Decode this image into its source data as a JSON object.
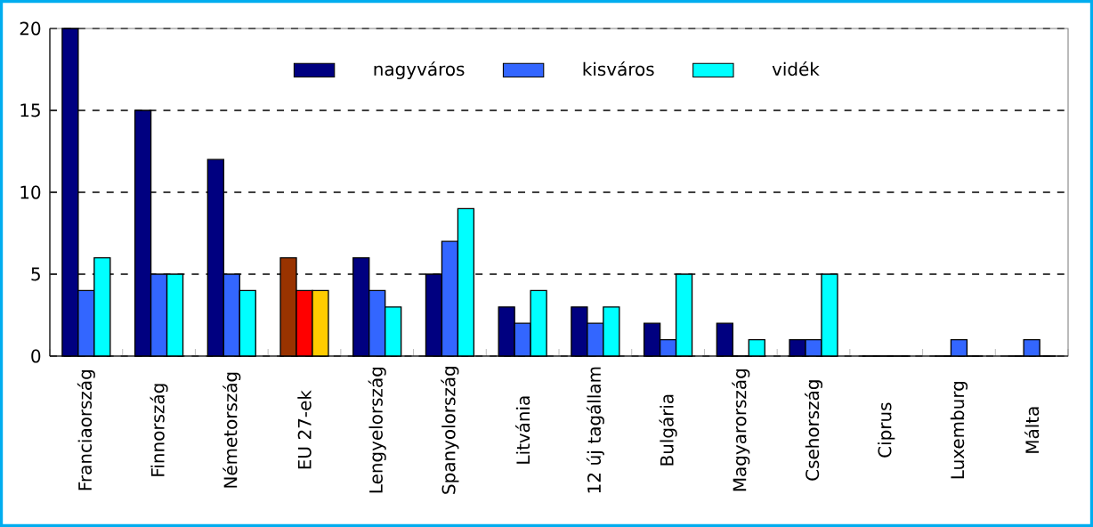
{
  "chart_data": {
    "type": "bar",
    "categories": [
      "Franciaország",
      "Finnország",
      "Németország",
      "EU 27-ek",
      "Lengyelország",
      "Spanyolország",
      "Litvánia",
      "12 új tagállam",
      "Bulgária",
      "Magyarország",
      "Csehország",
      "Ciprus",
      "Luxemburg",
      "Málta"
    ],
    "series": [
      {
        "name": "nagyváros",
        "color": "#000080",
        "colors": [
          "#000080",
          "#000080",
          "#000080",
          "#993300",
          "#000080",
          "#000080",
          "#000080",
          "#000080",
          "#000080",
          "#000080",
          "#000080",
          "#000080",
          "#000080",
          "#000080"
        ],
        "values": [
          20,
          15,
          12,
          6,
          6,
          5,
          3,
          3,
          2,
          2,
          1,
          0,
          0,
          0
        ]
      },
      {
        "name": "kisváros",
        "color": "#3366ff",
        "colors": [
          "#3366ff",
          "#3366ff",
          "#3366ff",
          "#ff0000",
          "#3366ff",
          "#3366ff",
          "#3366ff",
          "#3366ff",
          "#3366ff",
          "#3366ff",
          "#3366ff",
          "#3366ff",
          "#3366ff",
          "#3366ff"
        ],
        "values": [
          4,
          5,
          5,
          4,
          4,
          7,
          2,
          2,
          1,
          0,
          1,
          0,
          1,
          1
        ]
      },
      {
        "name": "vidék",
        "color": "#00ffff",
        "colors": [
          "#00ffff",
          "#00ffff",
          "#00ffff",
          "#ffcc00",
          "#00ffff",
          "#00ffff",
          "#00ffff",
          "#00ffff",
          "#00ffff",
          "#00ffff",
          "#00ffff",
          "#00ffff",
          "#00ffff",
          "#00ffff"
        ],
        "values": [
          6,
          5,
          4,
          4,
          3,
          9,
          4,
          3,
          5,
          1,
          5,
          0,
          0,
          0
        ]
      }
    ],
    "ylim": [
      0,
      20
    ],
    "yticks": [
      0,
      5,
      10,
      15,
      20
    ],
    "grid": "y",
    "legend": "top"
  }
}
